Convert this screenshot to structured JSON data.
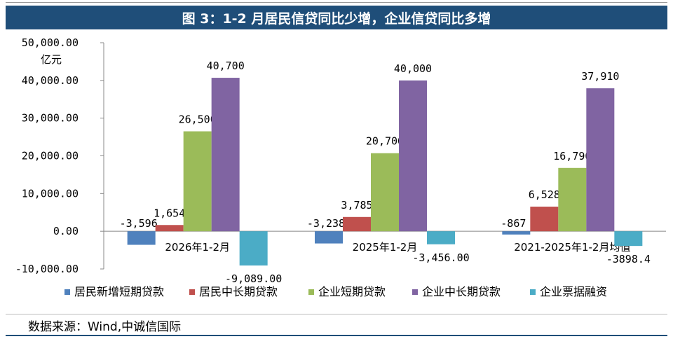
{
  "header": {
    "title": "图 3：1-2 月居民信贷同比少增，企业信贷同比多增"
  },
  "chart_data": {
    "type": "bar",
    "ylabel": "亿元",
    "ylim": [
      -10000,
      50000
    ],
    "yticks": [
      "50,000.00",
      "40,000.00",
      "30,000.00",
      "20,000.00",
      "10,000.00",
      "0.00",
      "-10,000.00"
    ],
    "ytick_values": [
      50000,
      40000,
      30000,
      20000,
      10000,
      0,
      -10000
    ],
    "categories": [
      "2026年1-2月",
      "2025年1-2月",
      "2021-2025年1-2月均值"
    ],
    "legend_position": "bottom",
    "grid": false,
    "series": [
      {
        "name": "居民新增短期贷款",
        "color": "#4f81bd",
        "values": [
          -3596,
          -3238,
          -867
        ],
        "labels": [
          "-3,596",
          "-3,238",
          "-867"
        ]
      },
      {
        "name": "居民中长期贷款",
        "color": "#c0504d",
        "values": [
          1654,
          3785,
          6528
        ],
        "labels": [
          "1,654",
          "3,785",
          "6,528"
        ]
      },
      {
        "name": "企业短期贷款",
        "color": "#9bbb59",
        "values": [
          26500,
          20700,
          16790
        ],
        "labels": [
          "26,500",
          "20,700",
          "16,790"
        ]
      },
      {
        "name": "企业中长期贷款",
        "color": "#8064a2",
        "values": [
          40700,
          40000,
          37910
        ],
        "labels": [
          "40,700",
          "40,000",
          "37,910"
        ]
      },
      {
        "name": "企业票据融资",
        "color": "#4bacc6",
        "values": [
          -9089,
          -3456,
          -3898.4
        ],
        "labels": [
          "-9,089.00",
          "-3,456.00",
          "-3898.4"
        ]
      }
    ]
  },
  "footer": {
    "source": "数据来源：Wind,中诚信国际"
  }
}
